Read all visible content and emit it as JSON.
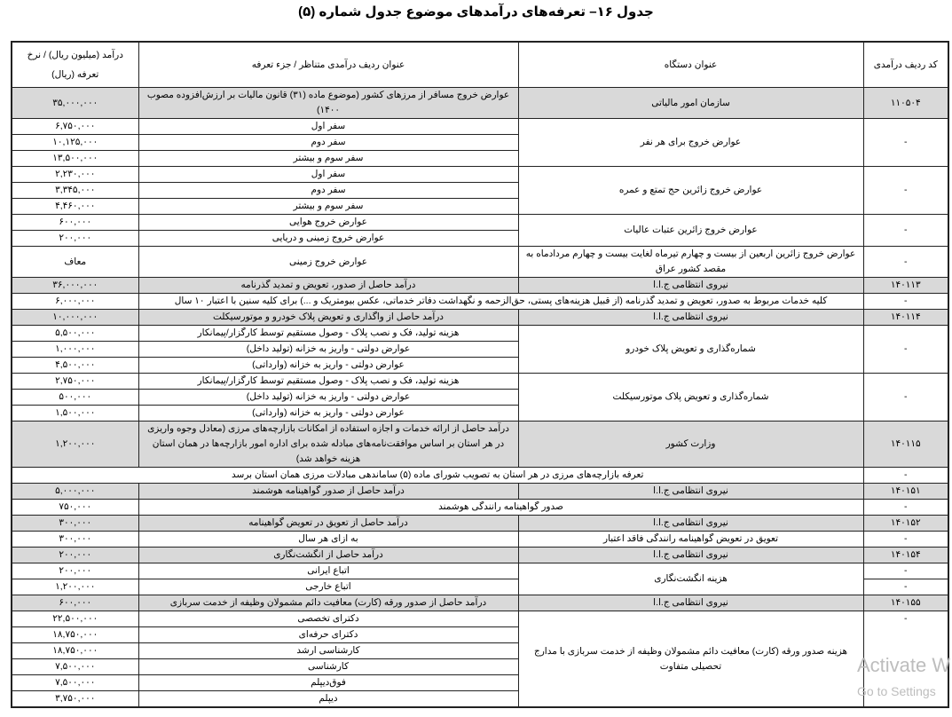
{
  "title": "جدول ۱۶– تعرفه‌های درآمدهای موضوع جدول شماره (۵)",
  "headers": {
    "code": "کد ردیف درآمدی",
    "device": "عنوان دستگاه",
    "item": "عنوان ردیف درآمدی متناظر / جزء تعرفه",
    "amount": "درآمد (میلیون ریال) / نرخ تعرفه (ریال)"
  },
  "rows": [
    {
      "highlight": true,
      "cells": [
        {
          "text": "۱۱۰۵۰۴"
        },
        {
          "text": "سازمان امور مالیاتی"
        },
        {
          "text": "عوارض خروج مسافر از مرزهای کشور (موضوع ماده (۳۱) قانون مالیات بر ارزش‌افزوده مصوب ۱۴۰۰)"
        },
        {
          "text": "۳۵,۰۰۰,۰۰۰"
        }
      ]
    },
    {
      "cells": [
        {
          "text": "-",
          "rowspan": 3
        },
        {
          "text": "عوارض خروج برای هر نفر",
          "rowspan": 3
        },
        {
          "text": "سفر اول"
        },
        {
          "text": "۶,۷۵۰,۰۰۰"
        }
      ]
    },
    {
      "cells": [
        {
          "text": "سفر دوم"
        },
        {
          "text": "۱۰,۱۲۵,۰۰۰"
        }
      ]
    },
    {
      "cells": [
        {
          "text": "سفر سوم و بیشتر"
        },
        {
          "text": "۱۳,۵۰۰,۰۰۰"
        }
      ]
    },
    {
      "cells": [
        {
          "text": "-",
          "rowspan": 3
        },
        {
          "text": "عوارض خروج زائرین حج تمتع و عمره",
          "rowspan": 3
        },
        {
          "text": "سفر اول"
        },
        {
          "text": "۲,۲۳۰,۰۰۰"
        }
      ]
    },
    {
      "cells": [
        {
          "text": "سفر دوم"
        },
        {
          "text": "۳,۳۴۵,۰۰۰"
        }
      ]
    },
    {
      "cells": [
        {
          "text": "سفر سوم و بیشتر"
        },
        {
          "text": "۴,۴۶۰,۰۰۰"
        }
      ]
    },
    {
      "cells": [
        {
          "text": "-",
          "rowspan": 2
        },
        {
          "text": "عوارض خروج زائرین عتبات عالیات",
          "rowspan": 2
        },
        {
          "text": "عوارض خروج هوایی"
        },
        {
          "text": "۶۰۰,۰۰۰"
        }
      ]
    },
    {
      "cells": [
        {
          "text": "عوارض خروج زمینی و دریایی"
        },
        {
          "text": "۲۰۰,۰۰۰"
        }
      ]
    },
    {
      "cells": [
        {
          "text": "-"
        },
        {
          "text": "عوارض خروج زائرین اربعین از بیست و چهارم تیرماه لغایت بیست و چهارم مردادماه به مقصد کشور عراق"
        },
        {
          "text": "عوارض خروج زمینی"
        },
        {
          "text": "معاف"
        }
      ]
    },
    {
      "highlight": true,
      "cells": [
        {
          "text": "۱۴۰۱۱۳"
        },
        {
          "text": "نیروی انتظامی ج.ا.ا"
        },
        {
          "text": "درآمد حاصل از صدور، تعویض و تمدید گذرنامه"
        },
        {
          "text": "۳۶,۰۰۰,۰۰۰"
        }
      ]
    },
    {
      "cells": [
        {
          "text": "-"
        },
        {
          "text": "کلیه خدمات مربوط به صدور، تعویض و تمدید گذرنامه (از قبیل هزینه‌های پستی، حق‌الزحمه و نگهداشت دفاتر خدماتی، عکس بیومتریک و ...) برای کلیه سنین با اعتبار ۱۰ سال",
          "colspan": 2
        },
        {
          "text": "۶,۰۰۰,۰۰۰"
        }
      ]
    },
    {
      "highlight": true,
      "cells": [
        {
          "text": "۱۴۰۱۱۴"
        },
        {
          "text": "نیروی انتظامی ج.ا.ا"
        },
        {
          "text": "درآمد حاصل از واگذاری و تعویض پلاک خودرو و موتورسیکلت"
        },
        {
          "text": "۱۰,۰۰۰,۰۰۰"
        }
      ]
    },
    {
      "cells": [
        {
          "text": "-",
          "rowspan": 3
        },
        {
          "text": "شماره‌گذاری و تعویض پلاک خودرو",
          "rowspan": 3
        },
        {
          "text": "هزینه تولید، فک و نصب پلاک - وصول مستقیم توسط کارگزار/پیمانکار"
        },
        {
          "text": "۵,۵۰۰,۰۰۰"
        }
      ]
    },
    {
      "cells": [
        {
          "text": "عوارض دولتی - واریز به خزانه (تولید داخل)"
        },
        {
          "text": "۱,۰۰۰,۰۰۰"
        }
      ]
    },
    {
      "cells": [
        {
          "text": "عوارض دولتی - واریز به خزانه (وارداتی)"
        },
        {
          "text": "۴,۵۰۰,۰۰۰"
        }
      ]
    },
    {
      "cells": [
        {
          "text": "-",
          "rowspan": 3
        },
        {
          "text": "شماره‌گذاری و تعویض پلاک موتورسیکلت",
          "rowspan": 3
        },
        {
          "text": "هزینه تولید، فک و نصب پلاک - وصول مستقیم توسط کارگزار/پیمانکار"
        },
        {
          "text": "۲,۷۵۰,۰۰۰"
        }
      ]
    },
    {
      "cells": [
        {
          "text": "عوارض دولتی - واریز به خزانه (تولید داخل)"
        },
        {
          "text": "۵۰۰,۰۰۰"
        }
      ]
    },
    {
      "cells": [
        {
          "text": "عوارض دولتی - واریز به خزانه (وارداتی)"
        },
        {
          "text": "۱,۵۰۰,۰۰۰"
        }
      ]
    },
    {
      "highlight": true,
      "cells": [
        {
          "text": "۱۴۰۱۱۵"
        },
        {
          "text": "وزارت کشور"
        },
        {
          "text": "درآمد حاصل از ارائه خدمات و اجازه استفاده از امکانات بازارچه‌های مرزی (معادل وجوه واریزی در هر استان بر اساس موافقت‌نامه‌های مبادله شده برای اداره امور بازارچه‌ها در همان استان هزینه خواهد شد)"
        },
        {
          "text": "۱,۲۰۰,۰۰۰"
        }
      ]
    },
    {
      "cells": [
        {
          "text": "-"
        },
        {
          "text": "تعرفه بازارچه‌های مرزی در هر استان به تصویب شورای ماده (۵) ساماندهی مبادلات مرزی همان استان برسد",
          "colspan": 3
        }
      ]
    },
    {
      "highlight": true,
      "cells": [
        {
          "text": "۱۴۰۱۵۱"
        },
        {
          "text": "نیروی انتظامی ج.ا.ا"
        },
        {
          "text": "درآمد حاصل از صدور گواهینامه هوشمند"
        },
        {
          "text": "۵,۰۰۰,۰۰۰"
        }
      ]
    },
    {
      "cells": [
        {
          "text": "-"
        },
        {
          "text": "صدور گواهینامه رانندگی هوشمند",
          "colspan": 2
        },
        {
          "text": "۷۵۰,۰۰۰"
        }
      ]
    },
    {
      "highlight": true,
      "cells": [
        {
          "text": "۱۴۰۱۵۲"
        },
        {
          "text": "نیروی انتظامی ج.ا.ا"
        },
        {
          "text": "درآمد حاصل از تعویق در تعویض گواهینامه"
        },
        {
          "text": "۳۰۰,۰۰۰"
        }
      ]
    },
    {
      "cells": [
        {
          "text": "-"
        },
        {
          "text": "تعویق در تعویض گواهینامه رانندگی فاقد اعتبار"
        },
        {
          "text": "به ازای هر سال"
        },
        {
          "text": "۳۰۰,۰۰۰"
        }
      ]
    },
    {
      "highlight": true,
      "cells": [
        {
          "text": "۱۴۰۱۵۴"
        },
        {
          "text": "نیروی انتظامی ج.ا.ا"
        },
        {
          "text": "درآمد حاصل از انگشت‌نگاری"
        },
        {
          "text": "۲۰۰,۰۰۰"
        }
      ]
    },
    {
      "cells": [
        {
          "text": "-"
        },
        {
          "text": "هزینه انگشت‌نگاری",
          "rowspan": 2
        },
        {
          "text": "اتباع ایرانی"
        },
        {
          "text": "۲۰۰,۰۰۰"
        }
      ]
    },
    {
      "cells": [
        {
          "text": "-"
        },
        {
          "text": "اتباع خارجی"
        },
        {
          "text": "۱,۲۰۰,۰۰۰"
        }
      ]
    },
    {
      "highlight": true,
      "cells": [
        {
          "text": "۱۴۰۱۵۵"
        },
        {
          "text": "نیروی انتظامی ج.ا.ا"
        },
        {
          "text": "درآمد حاصل از صدور ورقه (کارت) معافیت دائم مشمولان وظیفه از خدمت سربازی"
        },
        {
          "text": "۶۰۰,۰۰۰"
        }
      ]
    },
    {
      "cells": [
        {
          "text": "-",
          "rowspan": 6
        },
        {
          "text": "هزینه صدور ورقه (کارت) معافیت دائم مشمولان وظیفه از خدمت سربازی با مدارج تحصیلی متفاوت",
          "rowspan": 6
        },
        {
          "text": "دکترای تخصصی"
        },
        {
          "text": "۲۲,۵۰۰,۰۰۰"
        }
      ]
    },
    {
      "cells": [
        {
          "text": "دکترای حرفه‌ای"
        },
        {
          "text": "۱۸,۷۵۰,۰۰۰"
        }
      ]
    },
    {
      "cells": [
        {
          "text": "کارشناسی ارشد"
        },
        {
          "text": "۱۸,۷۵۰,۰۰۰"
        }
      ]
    },
    {
      "cells": [
        {
          "text": "کارشناسی"
        },
        {
          "text": "۷,۵۰۰,۰۰۰"
        }
      ]
    },
    {
      "cells": [
        {
          "text": "فوق‌دیپلم"
        },
        {
          "text": "۷,۵۰۰,۰۰۰"
        }
      ]
    },
    {
      "cells": [
        {
          "text": "دیپلم"
        },
        {
          "text": "۳,۷۵۰,۰۰۰"
        }
      ]
    }
  ],
  "watermark": {
    "line1": "Activate W",
    "line2": "Go to Settings"
  },
  "colors": {
    "highlight_row": "#d9d9d9",
    "border": "#222222"
  }
}
